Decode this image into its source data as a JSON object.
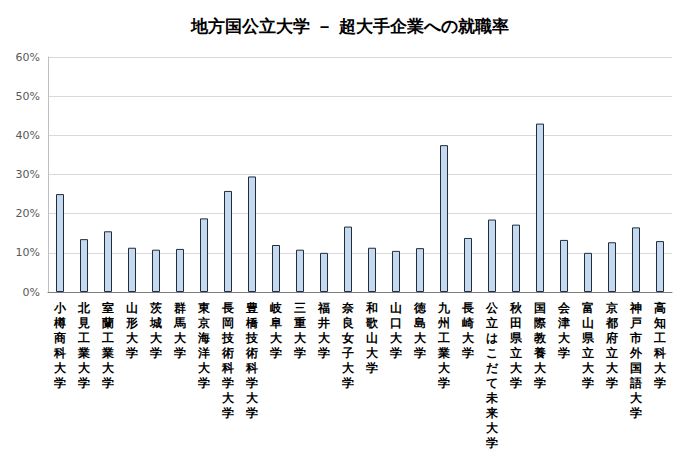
{
  "chart_data": {
    "type": "bar",
    "title": "地方国公立大学 － 超大手企業への就職率",
    "categories": [
      "小樽商科大学",
      "北見工業大学",
      "室蘭工業大学",
      "山形大学",
      "茨城大学",
      "群馬大学",
      "東京海洋大学",
      "長岡技術科学大学",
      "豊橋技術科学大学",
      "岐阜大学",
      "三重大学",
      "福井大学",
      "奈良女子大学",
      "和歌山大学",
      "山口大学",
      "徳島大学",
      "九州工業大学",
      "長崎大学",
      "公立はこだて未来大学",
      "秋田県立大学",
      "国際教養大学",
      "会津大学",
      "富山県立大学",
      "京都府立大学",
      "神戸市外国語大学",
      "高知工科大学"
    ],
    "values": [
      25,
      13.5,
      15.5,
      11.3,
      10.8,
      11,
      18.8,
      25.8,
      29.5,
      12,
      10.8,
      10,
      16.7,
      11.3,
      10.5,
      11.2,
      37.5,
      13.8,
      18.5,
      17.2,
      43,
      13.3,
      10,
      12.7,
      16.5,
      13
    ],
    "color": "#c6d9f0",
    "ylim": [
      0,
      60
    ],
    "yticks": [
      {
        "value": 0,
        "label": "0%"
      },
      {
        "value": 10,
        "label": "10%"
      },
      {
        "value": 20,
        "label": "20%"
      },
      {
        "value": 30,
        "label": "30%"
      },
      {
        "value": 40,
        "label": "40%"
      },
      {
        "value": 50,
        "label": "50%"
      },
      {
        "value": 60,
        "label": "60%"
      }
    ],
    "grid": true
  }
}
